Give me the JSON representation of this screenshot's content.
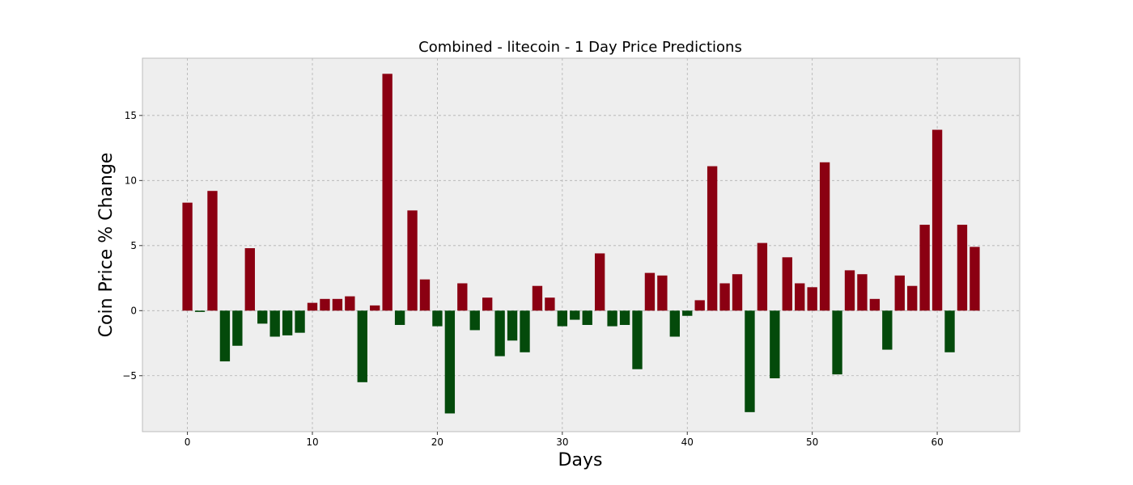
{
  "chart_data": {
    "type": "bar",
    "title": "Combined - litecoin - 1 Day Price Predictions",
    "xlabel": "Days",
    "ylabel": "Coin Price % Change",
    "xlim": [
      -3.6,
      66.6
    ],
    "ylim": [
      -9.3,
      19.4
    ],
    "xticks": [
      0,
      10,
      20,
      30,
      40,
      50,
      60
    ],
    "yticks": [
      -5,
      0,
      5,
      10,
      15
    ],
    "ytick_labels": [
      "−5",
      "0",
      "5",
      "10",
      "15"
    ],
    "grid": true,
    "colors": {
      "positive": "#8b0012",
      "negative": "#044a0b",
      "plot_bg": "#eeeeee",
      "frame": "#bcbcbc"
    },
    "x": [
      0,
      1,
      2,
      3,
      4,
      5,
      6,
      7,
      8,
      9,
      10,
      11,
      12,
      13,
      14,
      15,
      16,
      17,
      18,
      19,
      20,
      21,
      22,
      23,
      24,
      25,
      26,
      27,
      28,
      29,
      30,
      31,
      32,
      33,
      34,
      35,
      36,
      37,
      38,
      39,
      40,
      41,
      42,
      43,
      44,
      45,
      46,
      47,
      48,
      49,
      50,
      51,
      52,
      53,
      54,
      55,
      56,
      57,
      58,
      59,
      60,
      61,
      62,
      63
    ],
    "values": [
      8.3,
      -0.1,
      9.2,
      -3.9,
      -2.7,
      4.8,
      -1.0,
      -2.0,
      -1.9,
      -1.7,
      0.6,
      0.9,
      0.9,
      1.1,
      -5.5,
      0.4,
      18.2,
      -1.1,
      7.7,
      2.4,
      -1.2,
      -7.9,
      2.1,
      -1.5,
      1.0,
      -3.5,
      -2.3,
      -3.2,
      1.9,
      1.0,
      -1.2,
      -0.7,
      -1.1,
      4.4,
      -1.2,
      -1.1,
      -4.5,
      2.9,
      2.7,
      -2.0,
      -0.4,
      0.8,
      11.1,
      2.1,
      2.8,
      -7.8,
      5.2,
      -5.2,
      4.1,
      2.1,
      1.8,
      11.4,
      -4.9,
      3.1,
      2.8,
      0.9,
      -3.0,
      2.7,
      1.9,
      6.6,
      13.9,
      -3.2,
      6.6,
      4.9
    ]
  }
}
